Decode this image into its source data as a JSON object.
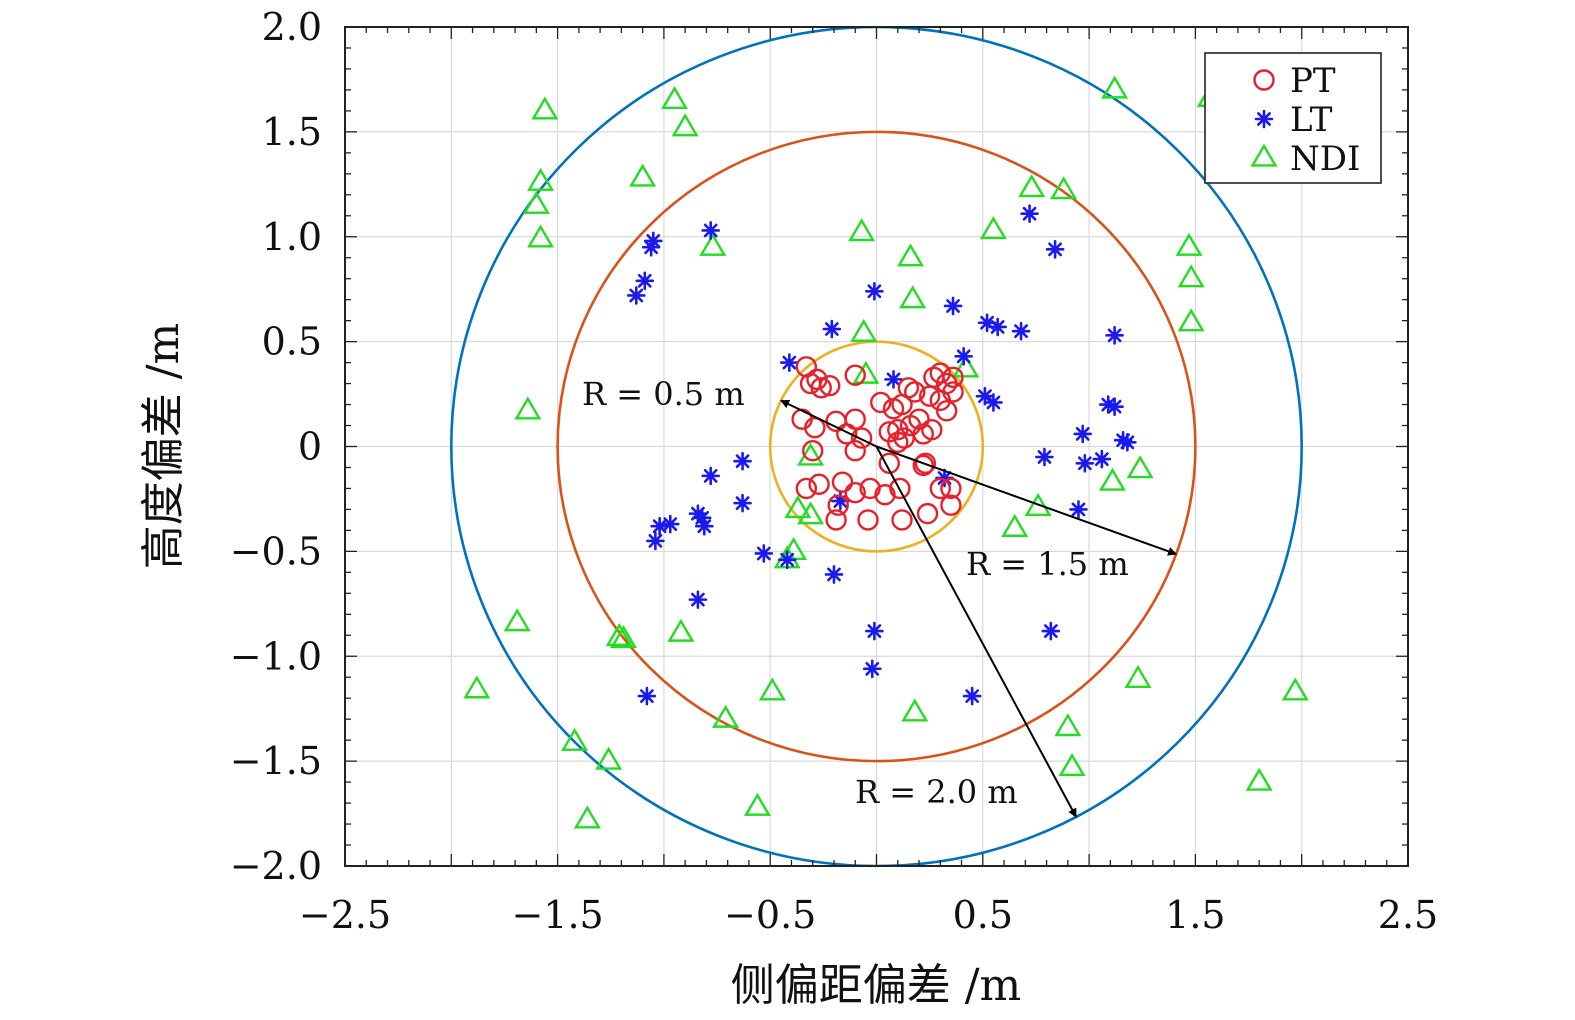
{
  "chart_data": {
    "type": "scatter",
    "xlabel": "侧偏距偏差 /m",
    "ylabel": "高度偏差 /m",
    "xlim": [
      -2.5,
      2.5
    ],
    "ylim": [
      -2.0,
      2.0
    ],
    "xticks": [
      "−2.5",
      "−1.5",
      "−0.5",
      "0.5",
      "1.5",
      "2.5"
    ],
    "yticks": [
      "2.0",
      "1.5",
      "1.0",
      "0.5",
      "0",
      "−0.5",
      "−1.0",
      "−1.5",
      "−2.0"
    ],
    "grid": true,
    "legend_position": "top-right",
    "series": [
      {
        "name": "PT",
        "marker": "circle",
        "color": "#e8202a",
        "points": [
          [
            -0.33,
            0.38
          ],
          [
            -0.31,
            0.3
          ],
          [
            -0.28,
            0.32
          ],
          [
            -0.26,
            0.28
          ],
          [
            -0.22,
            0.29
          ],
          [
            -0.1,
            0.34
          ],
          [
            0.15,
            0.28
          ],
          [
            0.18,
            0.26
          ],
          [
            0.27,
            0.33
          ],
          [
            0.3,
            0.35
          ],
          [
            0.33,
            0.3
          ],
          [
            0.36,
            0.33
          ],
          [
            0.36,
            0.26
          ],
          [
            0.3,
            0.22
          ],
          [
            0.33,
            0.17
          ],
          [
            0.25,
            0.24
          ],
          [
            0.12,
            0.2
          ],
          [
            0.08,
            0.18
          ],
          [
            0.02,
            0.21
          ],
          [
            -0.19,
            0.12
          ],
          [
            -0.14,
            0.06
          ],
          [
            -0.1,
            0.13
          ],
          [
            -0.07,
            0.04
          ],
          [
            -0.1,
            -0.02
          ],
          [
            -0.29,
            0.09
          ],
          [
            -0.35,
            0.13
          ],
          [
            -0.3,
            -0.02
          ],
          [
            0.1,
            0.08
          ],
          [
            0.16,
            0.1
          ],
          [
            0.2,
            0.13
          ],
          [
            0.06,
            0.07
          ],
          [
            0.1,
            0.02
          ],
          [
            0.13,
            0.04
          ],
          [
            0.22,
            0.06
          ],
          [
            0.26,
            0.08
          ],
          [
            0.23,
            -0.08
          ],
          [
            0.06,
            -0.08
          ],
          [
            -0.16,
            -0.17
          ],
          [
            -0.1,
            -0.22
          ],
          [
            -0.03,
            -0.2
          ],
          [
            0.04,
            -0.23
          ],
          [
            0.11,
            -0.2
          ],
          [
            -0.27,
            -0.18
          ],
          [
            -0.33,
            -0.2
          ],
          [
            -0.18,
            -0.28
          ],
          [
            -0.19,
            -0.35
          ],
          [
            -0.04,
            -0.35
          ],
          [
            0.12,
            -0.35
          ],
          [
            0.24,
            -0.32
          ],
          [
            0.35,
            -0.28
          ],
          [
            0.35,
            -0.2
          ],
          [
            0.3,
            -0.2
          ],
          [
            0.22,
            -0.09
          ]
        ]
      },
      {
        "name": "LT",
        "marker": "asterisk",
        "color": "#1a1aee",
        "points": [
          [
            -1.06,
            0.95
          ],
          [
            -1.05,
            0.98
          ],
          [
            -1.13,
            0.72
          ],
          [
            -1.09,
            0.79
          ],
          [
            -0.78,
            1.03
          ],
          [
            0.72,
            1.11
          ],
          [
            0.84,
            0.94
          ],
          [
            -0.01,
            0.74
          ],
          [
            0.36,
            0.67
          ],
          [
            0.52,
            0.59
          ],
          [
            0.57,
            0.57
          ],
          [
            0.68,
            0.55
          ],
          [
            1.12,
            0.53
          ],
          [
            -0.21,
            0.56
          ],
          [
            0.41,
            0.43
          ],
          [
            0.51,
            0.24
          ],
          [
            0.55,
            0.21
          ],
          [
            -0.41,
            0.4
          ],
          [
            0.08,
            0.32
          ],
          [
            1.09,
            0.2
          ],
          [
            1.12,
            0.19
          ],
          [
            1.16,
            0.03
          ],
          [
            1.18,
            0.02
          ],
          [
            0.97,
            0.06
          ],
          [
            0.79,
            -0.05
          ],
          [
            0.98,
            -0.08
          ],
          [
            1.06,
            -0.06
          ],
          [
            -0.63,
            -0.07
          ],
          [
            -0.78,
            -0.14
          ],
          [
            -1.02,
            -0.38
          ],
          [
            -0.97,
            -0.37
          ],
          [
            -1.04,
            -0.45
          ],
          [
            -0.82,
            -0.34
          ],
          [
            -0.84,
            -0.32
          ],
          [
            -0.81,
            -0.38
          ],
          [
            -0.63,
            -0.27
          ],
          [
            -0.53,
            -0.51
          ],
          [
            -0.42,
            -0.54
          ],
          [
            -0.2,
            -0.61
          ],
          [
            -0.01,
            -0.88
          ],
          [
            -0.02,
            -1.06
          ],
          [
            0.45,
            -1.19
          ],
          [
            0.82,
            -0.88
          ],
          [
            -1.08,
            -1.19
          ],
          [
            -0.84,
            -0.73
          ],
          [
            0.32,
            -0.15
          ],
          [
            0.95,
            -0.3
          ],
          [
            -0.17,
            -0.26
          ]
        ]
      },
      {
        "name": "NDI",
        "marker": "triangle",
        "color": "#22dd22",
        "points": [
          [
            -1.56,
            1.6
          ],
          [
            -1.58,
            1.26
          ],
          [
            -1.6,
            1.15
          ],
          [
            -1.58,
            0.99
          ],
          [
            -0.95,
            1.65
          ],
          [
            -0.9,
            1.52
          ],
          [
            -1.1,
            1.28
          ],
          [
            -0.77,
            0.95
          ],
          [
            1.12,
            1.7
          ],
          [
            1.57,
            1.66
          ],
          [
            0.73,
            1.23
          ],
          [
            0.88,
            1.22
          ],
          [
            1.47,
            0.95
          ],
          [
            1.48,
            0.8
          ],
          [
            1.48,
            0.59
          ],
          [
            0.55,
            1.03
          ],
          [
            -0.07,
            1.02
          ],
          [
            0.16,
            0.9
          ],
          [
            0.17,
            0.7
          ],
          [
            -0.06,
            0.54
          ],
          [
            -0.05,
            0.34
          ],
          [
            0.42,
            0.37
          ],
          [
            -1.64,
            0.17
          ],
          [
            -0.31,
            -0.05
          ],
          [
            -0.37,
            -0.3
          ],
          [
            -0.31,
            -0.33
          ],
          [
            -0.39,
            -0.5
          ],
          [
            -0.42,
            -0.54
          ],
          [
            0.65,
            -0.39
          ],
          [
            0.76,
            -0.29
          ],
          [
            1.11,
            -0.17
          ],
          [
            1.24,
            -0.11
          ],
          [
            -1.69,
            -0.84
          ],
          [
            -1.21,
            -0.91
          ],
          [
            -1.19,
            -0.92
          ],
          [
            -0.92,
            -0.89
          ],
          [
            -1.88,
            -1.16
          ],
          [
            -0.49,
            -1.17
          ],
          [
            -0.71,
            -1.3
          ],
          [
            0.18,
            -1.27
          ],
          [
            1.23,
            -1.11
          ],
          [
            0.9,
            -1.34
          ],
          [
            0.92,
            -1.53
          ],
          [
            1.97,
            -1.17
          ],
          [
            -1.42,
            -1.41
          ],
          [
            -1.26,
            -1.5
          ],
          [
            -1.36,
            -1.78
          ],
          [
            -0.56,
            -1.72
          ],
          [
            1.8,
            -1.6
          ]
        ]
      }
    ],
    "circles": [
      {
        "radius": 0.5,
        "color": "#edb120"
      },
      {
        "radius": 1.5,
        "color": "#d95319"
      },
      {
        "radius": 2.0,
        "color": "#0072bd"
      }
    ],
    "annotations": [
      {
        "text": "R = 0.5 m",
        "radius": 0.5,
        "arrow_angle_deg": 154
      },
      {
        "text": "R = 1.5 m",
        "radius": 1.5,
        "arrow_angle_deg": -20
      },
      {
        "text": "R = 2.0 m",
        "radius": 2.0,
        "arrow_angle_deg": -62
      }
    ]
  }
}
